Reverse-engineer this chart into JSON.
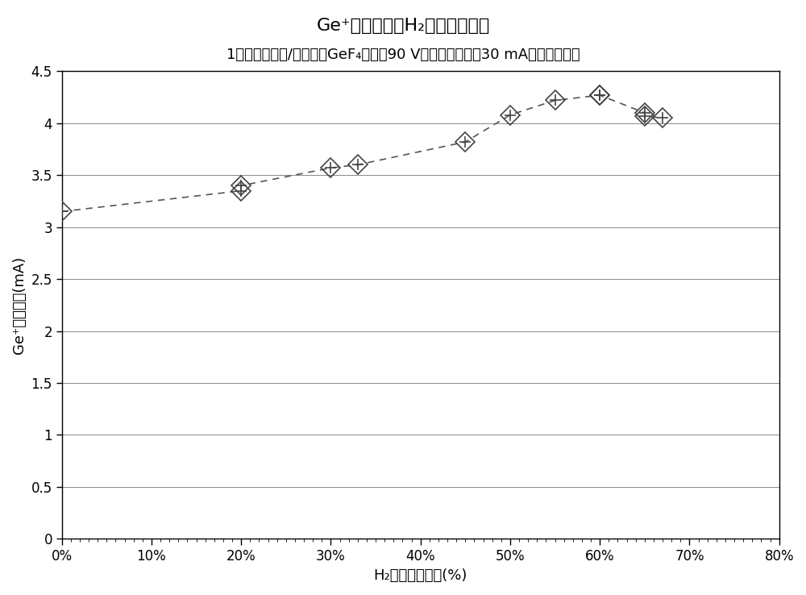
{
  "title_line1": "Ge⁺射束电流对H₂混合物百分比",
  "title_line2": "1标准立方厘米/分钟下的GeF₄流动、90 V下的电弧电压、30 mA下的源极光束",
  "xlabel": "H₂混合物百分比(%)",
  "ylabel": "Ge⁺射束电流(mA)",
  "x_data": [
    0,
    20,
    20,
    30,
    33,
    45,
    50,
    55,
    60,
    60,
    65,
    65,
    67
  ],
  "y_data": [
    3.15,
    3.35,
    3.4,
    3.57,
    3.6,
    3.82,
    4.08,
    4.22,
    4.27,
    4.27,
    4.1,
    4.07,
    4.05
  ],
  "xlim": [
    0,
    0.8
  ],
  "ylim": [
    0,
    4.5
  ],
  "xticks": [
    0,
    0.1,
    0.2,
    0.3,
    0.4,
    0.5,
    0.6,
    0.7,
    0.8
  ],
  "yticks": [
    0,
    0.5,
    1.0,
    1.5,
    2.0,
    2.5,
    3.0,
    3.5,
    4.0,
    4.5
  ],
  "line_color": "#555555",
  "background_color": "#ffffff",
  "grid_color": "#888888",
  "title_fontsize": 16,
  "subtitle_fontsize": 13,
  "label_fontsize": 13,
  "tick_fontsize": 12
}
